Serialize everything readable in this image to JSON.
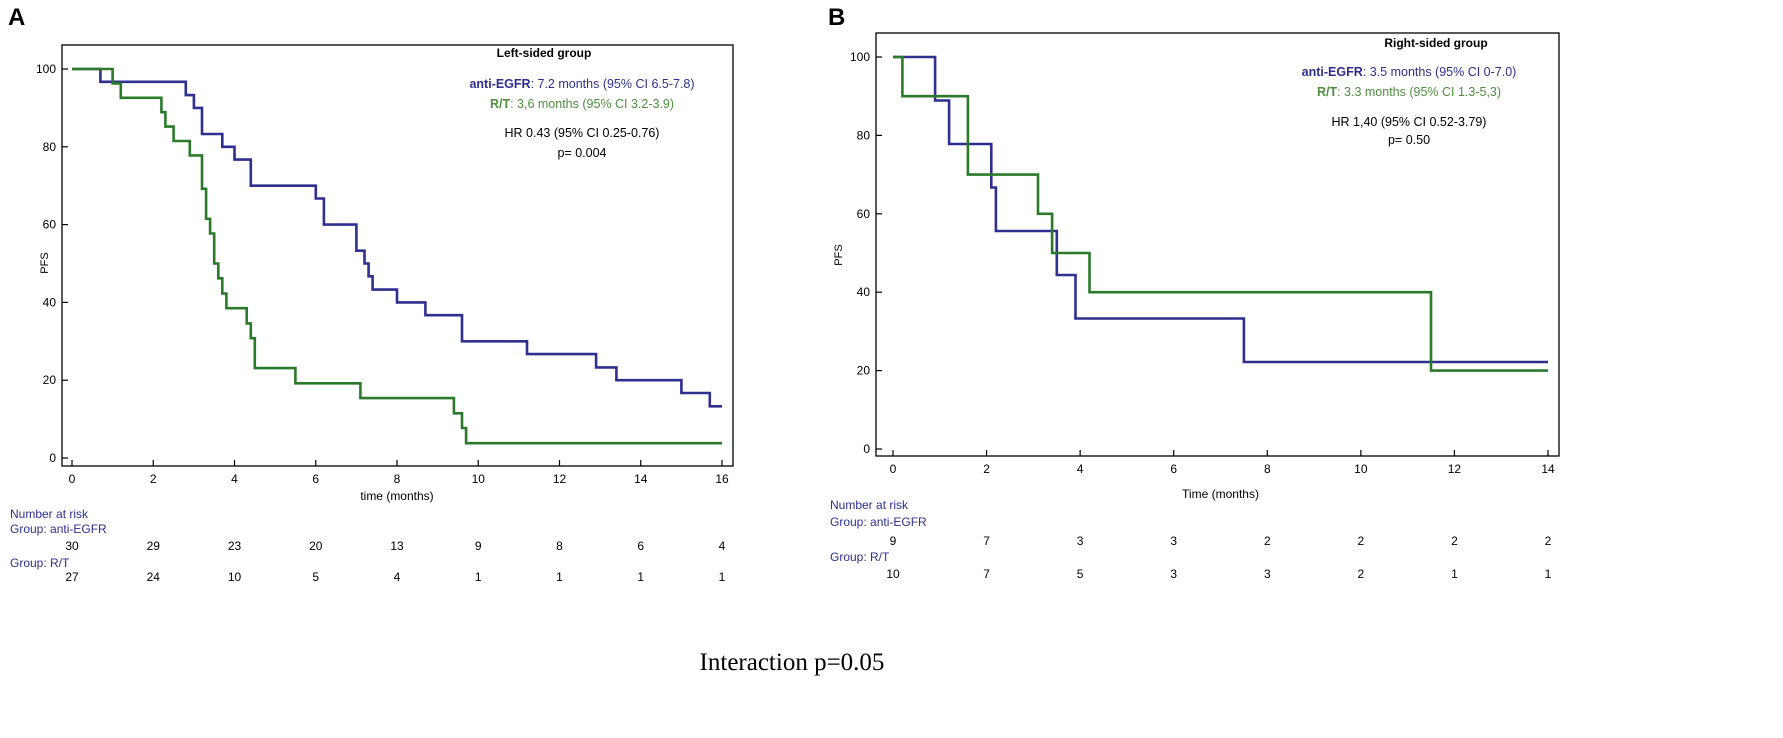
{
  "colors": {
    "anti_egfr": "#2e2f8f",
    "rt": "#2b7a2b",
    "rt_text": "#4e8f3e",
    "axis": "#000000",
    "risk_text": "#2e2f8f"
  },
  "footer": {
    "interaction": "Interaction p=0.05"
  },
  "chart_data": [
    {
      "panel_label": "A",
      "type": "line",
      "step": true,
      "title": "Left-sided group",
      "xlabel": "time (months)",
      "ylabel": "PFS",
      "xlim": [
        0,
        16
      ],
      "ylim": [
        0,
        100
      ],
      "xticks": [
        0,
        2,
        4,
        6,
        8,
        10,
        12,
        14,
        16
      ],
      "yticks": [
        0,
        20,
        40,
        60,
        80,
        100
      ],
      "legend": [
        {
          "series": "anti-EGFR",
          "label": "anti-EGFR",
          "text": ": 7.2 months (95% CI 6.5-7.8)",
          "color": "#2e2f8f"
        },
        {
          "series": "R/T",
          "label": "R/T",
          "text": ": 3,6 months (95% CI 3.2-3.9)",
          "color": "#4e8f3e"
        }
      ],
      "stats": [
        "HR 0.43 (95% CI 0.25-0.76)",
        "p= 0.004"
      ],
      "series": [
        {
          "name": "anti-EGFR",
          "color": "#2e2f8f",
          "x": [
            0,
            0.7,
            1.1,
            2.8,
            3.0,
            3.2,
            3.7,
            4.0,
            4.4,
            6.0,
            6.2,
            7.0,
            7.2,
            7.3,
            7.4,
            8.0,
            8.7,
            9.6,
            11.2,
            12.9,
            13.1,
            13.4,
            15.0,
            15.7,
            16.0
          ],
          "y": [
            100,
            96.7,
            96.7,
            93.3,
            90,
            83.3,
            80,
            76.7,
            70,
            66.7,
            60,
            53.3,
            50,
            46.7,
            43.3,
            40,
            36.7,
            30,
            26.7,
            23.3,
            23.3,
            20,
            16.7,
            13.3,
            13.3
          ]
        },
        {
          "name": "R/T",
          "color": "#2b7a2b",
          "x": [
            0,
            1.0,
            1.2,
            1.7,
            2.2,
            2.3,
            2.5,
            2.9,
            3.2,
            3.3,
            3.4,
            3.5,
            3.6,
            3.7,
            3.8,
            4.0,
            4.3,
            4.4,
            4.5,
            5.5,
            7.1,
            9.4,
            9.6,
            9.7,
            9.8,
            16.0
          ],
          "y": [
            100,
            96.3,
            92.6,
            92.6,
            88.9,
            85.2,
            81.5,
            77.8,
            69.2,
            61.5,
            57.7,
            50,
            46.2,
            42.3,
            38.5,
            38.5,
            34.6,
            30.8,
            23.1,
            19.2,
            15.4,
            11.5,
            7.7,
            3.8,
            3.8,
            3.8
          ]
        }
      ],
      "risk_table": {
        "title": "Number at risk",
        "times": [
          0,
          2,
          4,
          6,
          8,
          10,
          12,
          14,
          16
        ],
        "groups": [
          {
            "label": "Group: anti-EGFR",
            "counts": [
              30,
              29,
              23,
              20,
              13,
              9,
              8,
              6,
              4
            ]
          },
          {
            "label": "Group: R/T",
            "counts": [
              27,
              24,
              10,
              5,
              4,
              1,
              1,
              1,
              1
            ]
          }
        ]
      }
    },
    {
      "panel_label": "B",
      "type": "line",
      "step": true,
      "title": "Right-sided group",
      "xlabel": "Time (months)",
      "ylabel": "PFS",
      "xlim": [
        0,
        14
      ],
      "ylim": [
        0,
        100
      ],
      "xticks": [
        0,
        2,
        4,
        6,
        8,
        10,
        12,
        14
      ],
      "yticks": [
        0,
        20,
        40,
        60,
        80,
        100
      ],
      "legend": [
        {
          "series": "anti-EGFR",
          "label": "anti-EGFR",
          "text": ": 3.5 months (95% CI 0-7.0)",
          "color": "#2e2f8f"
        },
        {
          "series": "R/T",
          "label": "R/T",
          "text": ": 3.3 months (95% CI 1.3-5,3)",
          "color": "#4e8f3e"
        }
      ],
      "stats": [
        "HR 1,40 (95% CI 0.52-3.79)",
        "p= 0.50"
      ],
      "series": [
        {
          "name": "anti-EGFR",
          "color": "#2e2f8f",
          "x": [
            0,
            0.9,
            1.2,
            2.1,
            2.2,
            3.5,
            3.9,
            7.5,
            14.0
          ],
          "y": [
            100,
            88.9,
            77.8,
            66.7,
            55.6,
            44.4,
            33.3,
            22.2,
            22.2
          ]
        },
        {
          "name": "R/T",
          "color": "#2b7a2b",
          "x": [
            0,
            0.2,
            1.6,
            3.1,
            3.4,
            4.2,
            11.5,
            14.0
          ],
          "y": [
            100,
            90,
            70,
            60,
            50,
            40,
            20,
            20
          ]
        }
      ],
      "risk_table": {
        "title": "Number at risk",
        "times": [
          0,
          2,
          4,
          6,
          8,
          10,
          12,
          14
        ],
        "groups": [
          {
            "label": "Group: anti-EGFR",
            "counts": [
              9,
              7,
              3,
              3,
              2,
              2,
              2,
              2
            ]
          },
          {
            "label": "Group: R/T",
            "counts": [
              10,
              7,
              5,
              3,
              3,
              2,
              1,
              1
            ]
          }
        ]
      }
    }
  ]
}
